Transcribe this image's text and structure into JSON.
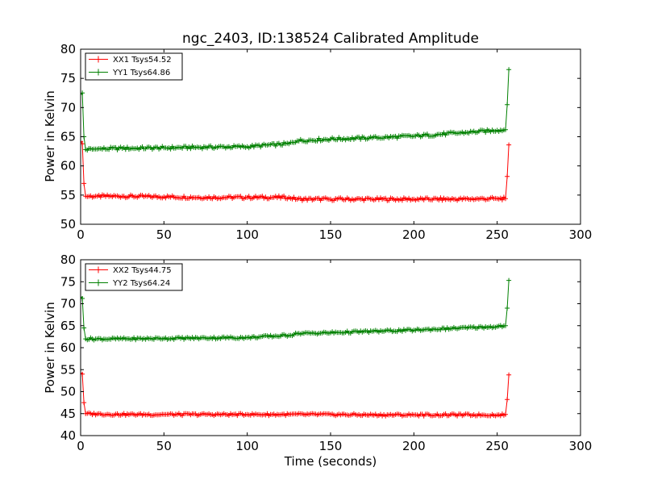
{
  "title": "ngc_2403, ID:138524 Calibrated Amplitude",
  "chart_data": [
    {
      "type": "line",
      "ylabel": "Power in Kelvin",
      "xlabel": "",
      "xlim": [
        0,
        300
      ],
      "ylim": [
        50,
        80
      ],
      "xticks": [
        "0",
        "50",
        "100",
        "150",
        "200",
        "250",
        "300"
      ],
      "yticks": [
        "50",
        "55",
        "60",
        "65",
        "70",
        "75",
        "80"
      ],
      "grid": false,
      "legend_position": "top-left",
      "series": [
        {
          "name": "XX1 Tsys54.52",
          "color": "#ff0000",
          "marker": "plus",
          "x": [
            0,
            1,
            2,
            3,
            10,
            25,
            50,
            75,
            100,
            125,
            130,
            150,
            175,
            200,
            225,
            250,
            255,
            256,
            257
          ],
          "y": [
            64.2,
            63.8,
            57.0,
            54.8,
            54.8,
            54.8,
            54.7,
            54.6,
            54.6,
            54.6,
            54.3,
            54.3,
            54.3,
            54.3,
            54.3,
            54.4,
            54.4,
            58.2,
            63.6
          ]
        },
        {
          "name": "YY1 Tsys64.86",
          "color": "#008000",
          "marker": "plus",
          "x": [
            0,
            1,
            2,
            3,
            10,
            25,
            50,
            75,
            100,
            125,
            130,
            150,
            175,
            200,
            225,
            250,
            255,
            256,
            257
          ],
          "y": [
            72.3,
            72.5,
            65.0,
            62.8,
            62.9,
            63.0,
            63.1,
            63.2,
            63.3,
            63.8,
            64.3,
            64.6,
            64.8,
            65.1,
            65.6,
            66.1,
            66.2,
            70.5,
            76.5
          ]
        }
      ]
    },
    {
      "type": "line",
      "ylabel": "Power in Kelvin",
      "xlabel": "Time (seconds)",
      "xlim": [
        0,
        300
      ],
      "ylim": [
        40,
        80
      ],
      "xticks": [
        "0",
        "50",
        "100",
        "150",
        "200",
        "250",
        "300"
      ],
      "yticks": [
        "40",
        "45",
        "50",
        "55",
        "60",
        "65",
        "70",
        "75",
        "80"
      ],
      "grid": false,
      "legend_position": "top-left",
      "series": [
        {
          "name": "XX2 Tsys44.75",
          "color": "#ff0000",
          "marker": "plus",
          "x": [
            0,
            1,
            2,
            3,
            10,
            25,
            50,
            75,
            100,
            125,
            150,
            175,
            200,
            225,
            250,
            255,
            256,
            257
          ],
          "y": [
            54.2,
            54.0,
            47.5,
            45.0,
            44.9,
            44.8,
            44.8,
            44.8,
            44.8,
            44.8,
            44.8,
            44.7,
            44.7,
            44.7,
            44.7,
            44.8,
            48.2,
            53.8
          ]
        },
        {
          "name": "YY2 Tsys64.24",
          "color": "#008000",
          "marker": "plus",
          "x": [
            0,
            1,
            2,
            3,
            10,
            25,
            50,
            75,
            100,
            125,
            130,
            150,
            175,
            200,
            225,
            250,
            255,
            256,
            257
          ],
          "y": [
            71.5,
            71.2,
            64.5,
            62.0,
            62.0,
            62.0,
            62.1,
            62.2,
            62.3,
            62.8,
            63.2,
            63.4,
            63.7,
            64.0,
            64.4,
            64.8,
            65.0,
            69.0,
            75.3
          ]
        }
      ]
    }
  ]
}
